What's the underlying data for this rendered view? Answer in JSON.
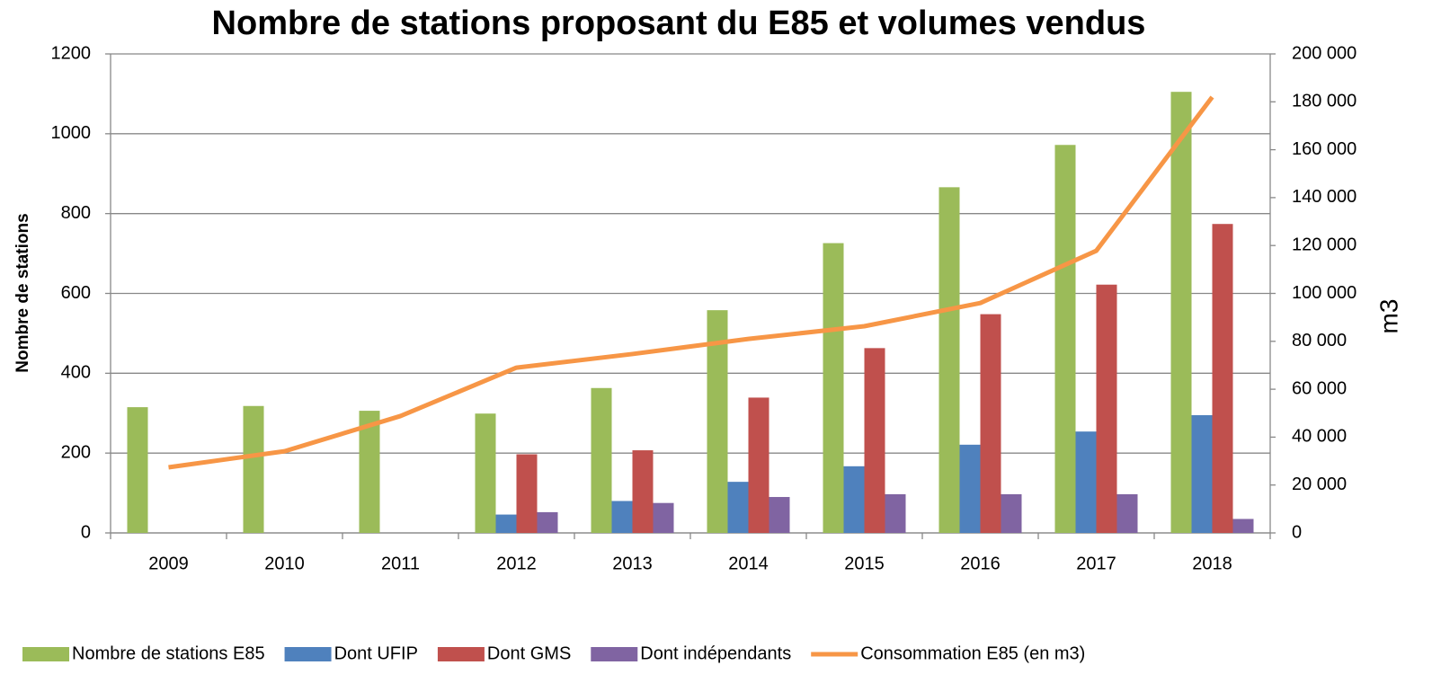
{
  "chart_data": {
    "type": "bar_line",
    "title": "Nombre de stations proposant du E85 et volumes vendus",
    "y_label": "Nombre de stations",
    "y2_label": "m3",
    "categories": [
      "2009",
      "2010",
      "2011",
      "2012",
      "2013",
      "2014",
      "2015",
      "2016",
      "2017",
      "2018"
    ],
    "series": [
      {
        "name": "Nombre de stations E85",
        "color": "#9bbb59",
        "type": "bar",
        "values": [
          315,
          318,
          306,
          299,
          363,
          558,
          726,
          866,
          972,
          1105
        ]
      },
      {
        "name": "Dont UFIP",
        "color": "#4f81bd",
        "type": "bar",
        "values": [
          0,
          0,
          0,
          46,
          80,
          128,
          167,
          221,
          254,
          295
        ]
      },
      {
        "name": "Dont GMS",
        "color": "#c0504d",
        "type": "bar",
        "values": [
          0,
          0,
          0,
          197,
          207,
          339,
          463,
          548,
          622,
          774
        ]
      },
      {
        "name": "Dont indépendants",
        "color": "#8064a2",
        "type": "bar",
        "values": [
          0,
          0,
          0,
          52,
          75,
          90,
          97,
          97,
          97,
          35
        ]
      },
      {
        "name": "Consommation E85 (en m3)",
        "color": "#f79646",
        "type": "line",
        "axis": "y2",
        "values": [
          27400,
          34100,
          48800,
          69000,
          74700,
          81000,
          86300,
          96000,
          117800,
          182000
        ]
      }
    ],
    "ylim": [
      0,
      1200
    ],
    "yticks": [
      0,
      200,
      400,
      600,
      800,
      1000,
      1200
    ],
    "y2lim": [
      0,
      200000
    ],
    "y2ticks": [
      0,
      {
        "value": 20000,
        "label": "20 000"
      },
      {
        "value": 40000,
        "label": "40 000"
      },
      {
        "value": 60000,
        "label": "60 000"
      },
      {
        "value": 80000,
        "label": "80 000"
      },
      {
        "value": 100000,
        "label": "100 000"
      },
      {
        "value": 120000,
        "label": "120 000"
      },
      {
        "value": 140000,
        "label": "140 000"
      },
      {
        "value": 160000,
        "label": "160 000"
      },
      {
        "value": 180000,
        "label": "180 000"
      },
      {
        "value": 200000,
        "label": "200 000"
      }
    ],
    "grid": true,
    "legend": "bottom"
  }
}
